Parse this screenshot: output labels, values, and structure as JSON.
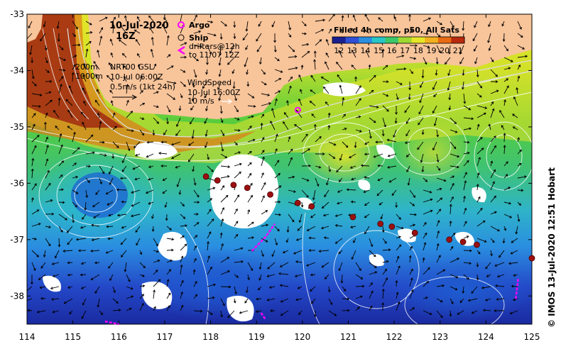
{
  "title": {
    "date": "10-Jul-2020",
    "hour": "16Z"
  },
  "legend": {
    "argo": "Argo",
    "ship": "Ship",
    "drifters": "drifters@12h",
    "drifters_to": "to 11/07 12Z"
  },
  "colorbar": {
    "title": "Filled 4h comp, p50, All Sats",
    "ticks": [
      "12",
      "13",
      "14",
      "15",
      "16",
      "17",
      "18",
      "19",
      "20",
      "21"
    ],
    "colors": [
      "#1a1f8f",
      "#2f4fd6",
      "#2b8fe0",
      "#28c6c8",
      "#3cc86a",
      "#a0d832",
      "#e6e628",
      "#f2b01e",
      "#e86a14",
      "#b82a0e"
    ]
  },
  "isobaths": {
    "a": "200m",
    "b": "1000m"
  },
  "gsl": {
    "name": "NRT00 GSL",
    "time": "10-Jul 06:00Z",
    "scale": "0.5m/s (1kt 24h)"
  },
  "wind": {
    "name": "WindSpeed",
    "time": "10-Jul 16:00Z",
    "scale": "10 m/s"
  },
  "axes": {
    "x_ticks": [
      "114",
      "115",
      "116",
      "117",
      "118",
      "119",
      "120",
      "121",
      "122",
      "123",
      "124",
      "125"
    ],
    "y_ticks": [
      "-33",
      "-34",
      "-35",
      "-36",
      "-37",
      "-38"
    ]
  },
  "credit": "© IMOS 13-Jul-2020 12:51 Hobart",
  "markers": {
    "ship_track": [
      [
        117.9,
        -35.88
      ],
      [
        118.15,
        -35.95
      ],
      [
        118.5,
        -36.03
      ],
      [
        118.8,
        -36.08
      ],
      [
        119.3,
        -36.2
      ],
      [
        119.9,
        -36.35
      ],
      [
        120.2,
        -36.41
      ],
      [
        121.1,
        -36.6
      ],
      [
        121.7,
        -36.72
      ],
      [
        121.95,
        -36.77
      ],
      [
        122.45,
        -36.88
      ],
      [
        123.2,
        -37.0
      ],
      [
        123.5,
        -37.04
      ],
      [
        123.8,
        -37.09
      ],
      [
        125.0,
        -37.33
      ]
    ],
    "argo": [
      [
        119.9,
        -34.7
      ]
    ],
    "drifter_tracks": [
      [
        [
          118.9,
          -37.2
        ],
        [
          119.2,
          -36.95
        ],
        [
          119.4,
          -36.72
        ]
      ],
      [
        [
          119.1,
          -38.3
        ],
        [
          119.2,
          -38.42
        ]
      ],
      [
        [
          124.7,
          -37.7
        ],
        [
          124.65,
          -38.05
        ]
      ],
      [
        [
          115.7,
          -38.45
        ],
        [
          116.0,
          -38.5
        ]
      ]
    ]
  }
}
